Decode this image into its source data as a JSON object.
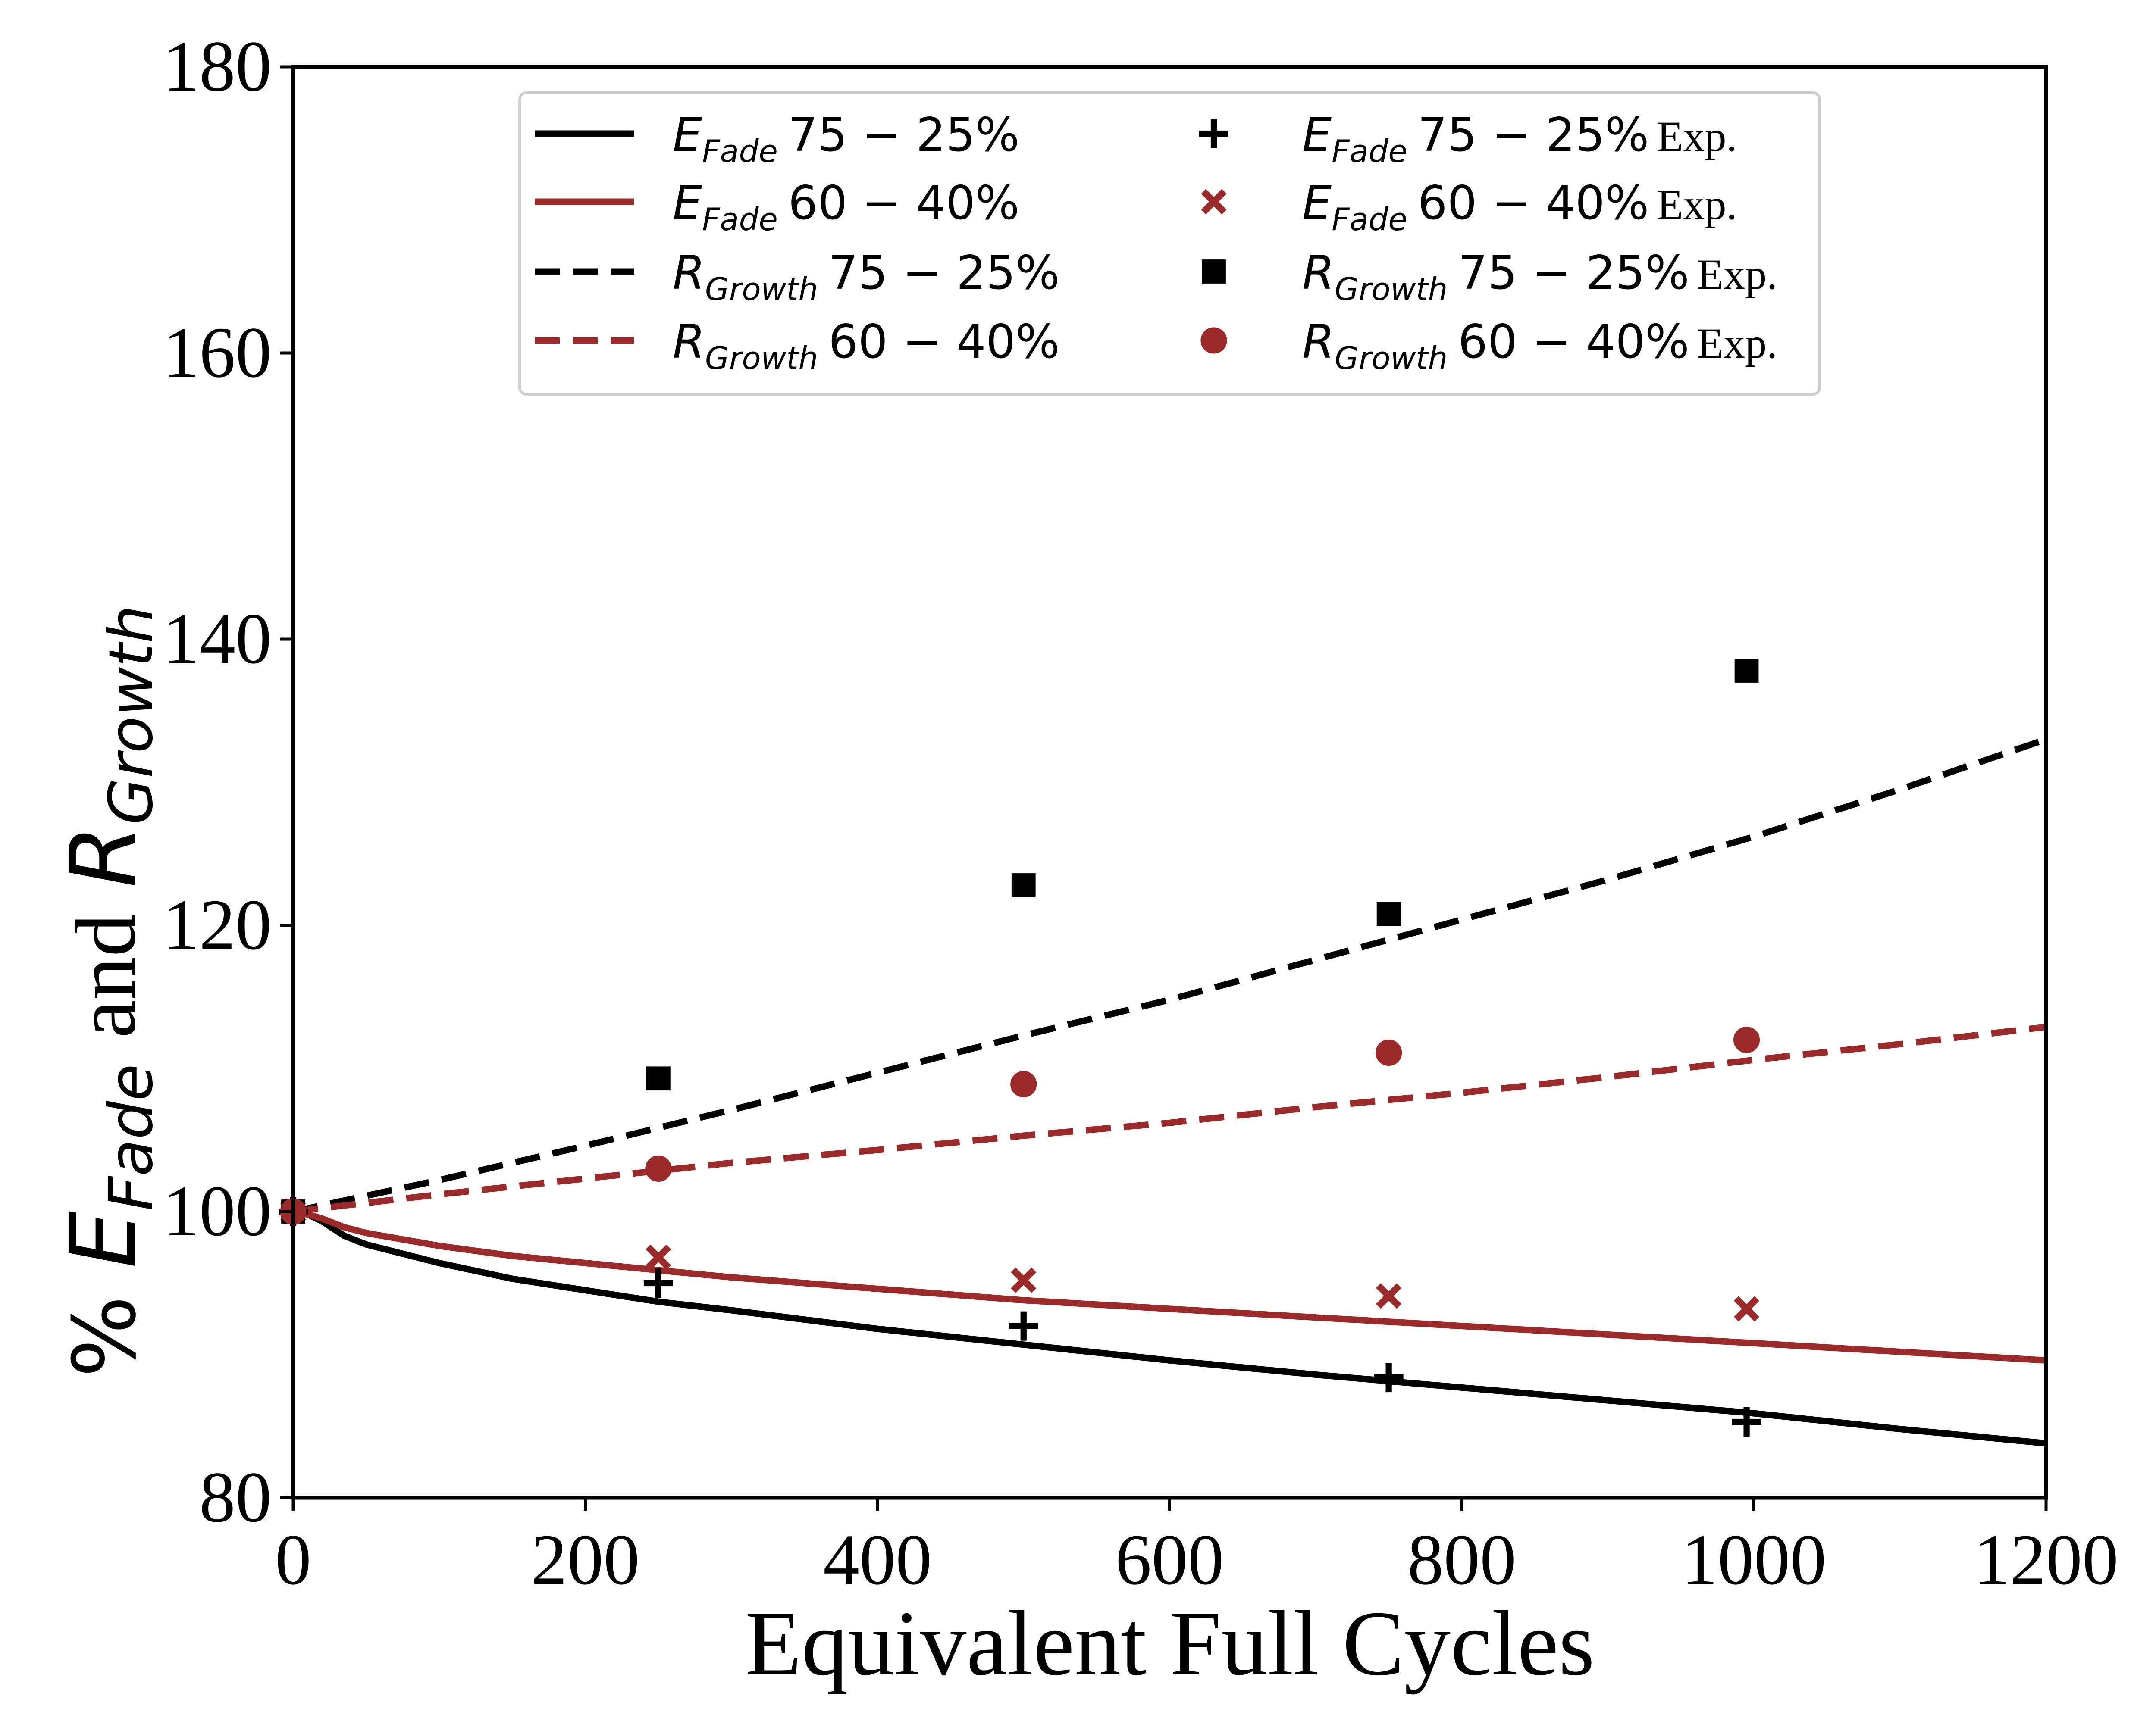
{
  "chart_data": {
    "type": "line",
    "title": "",
    "xlabel": "Equivalent Full Cycles",
    "ylabel": {
      "prefix": "% ",
      "e_main": "E",
      "e_sub": "Fade",
      "conj": "and",
      "r_main": "R",
      "r_sub": "Growth"
    },
    "xlim": [
      0,
      1200
    ],
    "ylim": [
      80,
      180
    ],
    "xticks": [
      "0",
      "200",
      "400",
      "600",
      "800",
      "1000",
      "1200"
    ],
    "yticks": [
      "80",
      "100",
      "120",
      "140",
      "160",
      "180"
    ],
    "grid": false,
    "legend_position": "top-center",
    "colors": {
      "black": "#000000",
      "red": "#9b2a2a"
    },
    "series": [
      {
        "name": "E_Fade 75-25%",
        "legend": {
          "main": "E",
          "sub": "Fade",
          "rest": "75 − 25%",
          "exp": ""
        },
        "kind": "line",
        "style": "solid",
        "color": "#000000",
        "x": [
          0,
          10,
          20,
          35,
          50,
          100,
          150,
          200,
          250,
          300,
          400,
          500,
          600,
          700,
          800,
          900,
          1000,
          1100,
          1200
        ],
        "y": [
          100,
          99.8,
          99.3,
          98.3,
          97.7,
          96.4,
          95.3,
          94.5,
          93.7,
          93.1,
          91.8,
          90.7,
          89.6,
          88.6,
          87.7,
          86.8,
          85.9,
          84.8,
          83.8
        ]
      },
      {
        "name": "E_Fade 60-40%",
        "legend": {
          "main": "E",
          "sub": "Fade",
          "rest": "60 − 40%",
          "exp": ""
        },
        "kind": "line",
        "style": "solid",
        "color": "#9b2a2a",
        "x": [
          0,
          10,
          20,
          35,
          50,
          100,
          150,
          200,
          250,
          300,
          400,
          500,
          600,
          700,
          800,
          900,
          1000,
          1100,
          1200
        ],
        "y": [
          100,
          99.8,
          99.5,
          98.9,
          98.5,
          97.6,
          96.9,
          96.4,
          95.9,
          95.4,
          94.6,
          93.8,
          93.2,
          92.6,
          92.0,
          91.4,
          90.8,
          90.2,
          89.6
        ]
      },
      {
        "name": "R_Growth 75-25%",
        "legend": {
          "main": "R",
          "sub": "Growth",
          "rest": "75 − 25%",
          "exp": ""
        },
        "kind": "line",
        "style": "dashed",
        "color": "#000000",
        "x": [
          0,
          100,
          200,
          300,
          400,
          500,
          600,
          700,
          800,
          900,
          1000,
          1100,
          1200
        ],
        "y": [
          100,
          102.2,
          104.6,
          107.1,
          109.7,
          112.3,
          114.8,
          117.6,
          120.4,
          123.2,
          126.2,
          129.5,
          133.0
        ]
      },
      {
        "name": "R_Growth 60-40%",
        "legend": {
          "main": "R",
          "sub": "Growth",
          "rest": "60 − 40%",
          "exp": ""
        },
        "kind": "line",
        "style": "dashed",
        "color": "#9b2a2a",
        "x": [
          0,
          100,
          200,
          300,
          400,
          500,
          600,
          700,
          800,
          900,
          1000,
          1100,
          1200
        ],
        "y": [
          100,
          101.2,
          102.3,
          103.4,
          104.3,
          105.3,
          106.2,
          107.3,
          108.3,
          109.4,
          110.6,
          111.7,
          112.9
        ]
      },
      {
        "name": "E_Fade 75-25% Exp.",
        "legend": {
          "main": "E",
          "sub": "Fade",
          "rest": "75 − 25%",
          "exp": "Exp."
        },
        "kind": "scatter",
        "marker": "plus",
        "color": "#000000",
        "x": [
          0,
          250,
          500,
          750,
          995
        ],
        "y": [
          100,
          95.0,
          92.0,
          88.4,
          85.3
        ]
      },
      {
        "name": "E_Fade 60-40% Exp.",
        "legend": {
          "main": "E",
          "sub": "Fade",
          "rest": "60 − 40%",
          "exp": "Exp."
        },
        "kind": "scatter",
        "marker": "x",
        "color": "#9b2a2a",
        "x": [
          0,
          250,
          500,
          750,
          995
        ],
        "y": [
          100,
          96.8,
          95.2,
          94.1,
          93.2
        ]
      },
      {
        "name": "R_Growth 75-25% Exp.",
        "legend": {
          "main": "R",
          "sub": "Growth",
          "rest": "75 − 25%",
          "exp": "Exp."
        },
        "kind": "scatter",
        "marker": "square",
        "color": "#000000",
        "x": [
          0,
          250,
          500,
          750,
          995
        ],
        "y": [
          100,
          109.3,
          122.8,
          120.8,
          137.8
        ]
      },
      {
        "name": "R_Growth 60-40% Exp.",
        "legend": {
          "main": "R",
          "sub": "Growth",
          "rest": "60 − 40%",
          "exp": "Exp."
        },
        "kind": "scatter",
        "marker": "circle",
        "color": "#9b2a2a",
        "x": [
          0,
          250,
          500,
          750,
          995
        ],
        "y": [
          100,
          103.0,
          108.9,
          111.1,
          112.0
        ]
      }
    ]
  }
}
